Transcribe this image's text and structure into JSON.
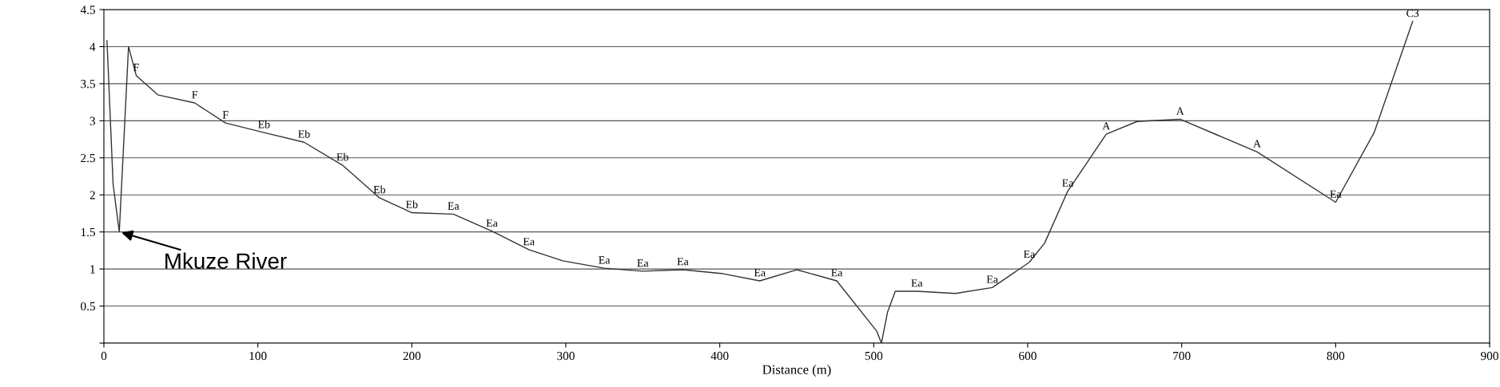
{
  "chart_data": {
    "type": "line",
    "xlabel": "Distance (m)",
    "x": [
      2,
      6,
      10,
      16,
      21,
      35,
      59,
      79,
      104,
      130,
      155,
      179,
      200,
      227,
      252,
      276,
      298,
      325,
      350,
      376,
      401,
      426,
      450,
      476,
      502,
      505,
      509,
      514,
      528,
      553,
      577,
      601,
      611,
      626,
      651,
      671,
      699,
      749,
      800,
      825,
      850
    ],
    "series": [
      {
        "color": "#333333",
        "values": [
          4.08,
          2.14,
          1.5,
          4.0,
          3.61,
          3.35,
          3.24,
          2.97,
          2.84,
          2.71,
          2.4,
          1.96,
          1.76,
          1.74,
          1.51,
          1.26,
          1.11,
          1.01,
          0.97,
          0.99,
          0.94,
          0.84,
          0.99,
          0.84,
          0.16,
          0.0,
          0.42,
          0.7,
          0.7,
          0.67,
          0.75,
          1.09,
          1.35,
          2.05,
          2.82,
          2.99,
          3.02,
          2.58,
          1.9,
          2.84,
          4.34
        ]
      }
    ],
    "xlim": [
      0,
      900
    ],
    "xticks": [
      0,
      100,
      200,
      300,
      400,
      500,
      600,
      700,
      800,
      900
    ],
    "ylim": [
      0,
      4.5
    ],
    "yticks": [
      {
        "value": 0,
        "label": null
      },
      0.5,
      1,
      1.5,
      2,
      2.5,
      3,
      3.5,
      4,
      4.5
    ],
    "grid": "y",
    "marker": "none",
    "line_style": "solid",
    "annotations": [
      {
        "text": "Mkuze River",
        "x": 10,
        "y": 1.5
      },
      {
        "text": "F",
        "x": 21,
        "y": 3.61
      },
      {
        "text": "F",
        "x": 59,
        "y": 3.24
      },
      {
        "text": "F",
        "x": 79,
        "y": 2.97
      },
      {
        "text": "Eb",
        "x": 104,
        "y": 2.84
      },
      {
        "text": "Eb",
        "x": 130,
        "y": 2.71
      },
      {
        "text": "Eb",
        "x": 155,
        "y": 2.4
      },
      {
        "text": "Eb",
        "x": 179,
        "y": 1.96
      },
      {
        "text": "Eb",
        "x": 200,
        "y": 1.76
      },
      {
        "text": "Ea",
        "x": 227,
        "y": 1.74
      },
      {
        "text": "Ea",
        "x": 252,
        "y": 1.51
      },
      {
        "text": "Ea",
        "x": 276,
        "y": 1.26
      },
      {
        "text": "Ea",
        "x": 325,
        "y": 1.01
      },
      {
        "text": "Ea",
        "x": 350,
        "y": 0.97
      },
      {
        "text": "Ea",
        "x": 376,
        "y": 0.99
      },
      {
        "text": "Ea",
        "x": 426,
        "y": 0.84
      },
      {
        "text": "Ea",
        "x": 476,
        "y": 0.84
      },
      {
        "text": "Ea",
        "x": 528,
        "y": 0.7
      },
      {
        "text": "Ea",
        "x": 577,
        "y": 0.75
      },
      {
        "text": "Ea",
        "x": 601,
        "y": 1.09
      },
      {
        "text": "Ea",
        "x": 626,
        "y": 2.05
      },
      {
        "text": "A",
        "x": 651,
        "y": 2.82
      },
      {
        "text": "A",
        "x": 699,
        "y": 3.02
      },
      {
        "text": "A",
        "x": 749,
        "y": 2.58
      },
      {
        "text": "Ea",
        "x": 800,
        "y": 1.9
      },
      {
        "text": "C3",
        "x": 850,
        "y": 4.34
      }
    ]
  }
}
